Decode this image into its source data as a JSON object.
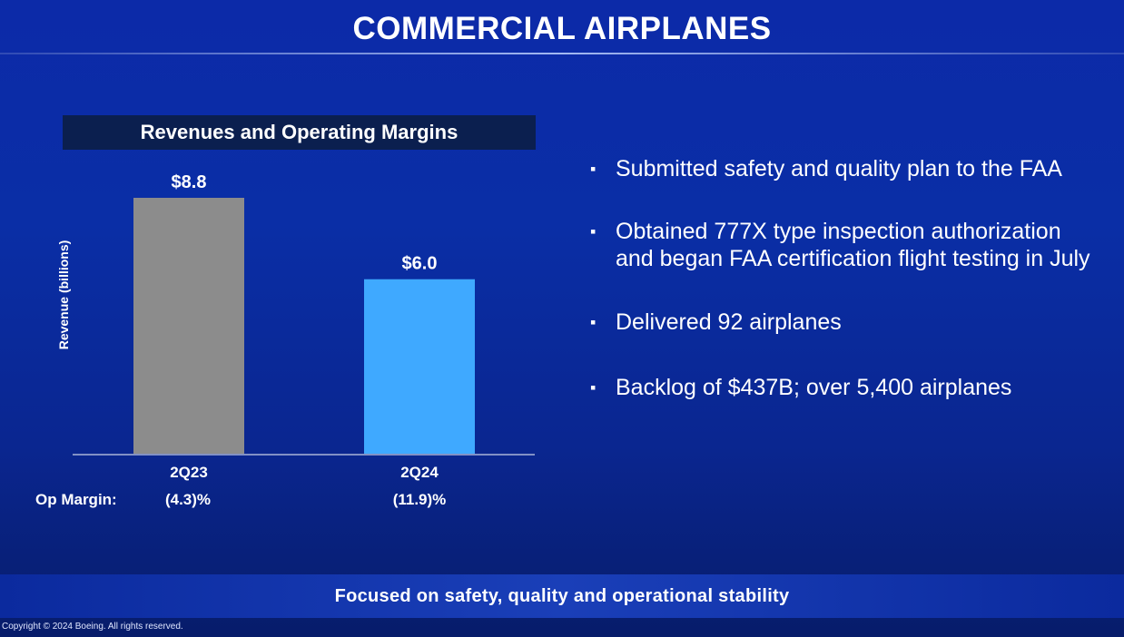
{
  "slide": {
    "title": "COMMERCIAL AIRPLANES",
    "footer": "Focused on safety, quality and operational stability",
    "copyright": "Copyright © 2024 Boeing. All rights reserved."
  },
  "colors": {
    "background": "#0a2ea6",
    "header_bar": "#0b1f4f",
    "bar_2q23": "#8c8c8c",
    "bar_2q24": "#3fa9ff"
  },
  "chart_data": {
    "type": "bar",
    "title": "Revenues and Operating Margins",
    "ylabel": "Revenue (billions)",
    "categories": [
      "2Q23",
      "2Q24"
    ],
    "values": [
      8.8,
      6.0
    ],
    "value_labels": [
      "$8.8",
      "$6.0"
    ],
    "ylim": [
      0,
      8.8
    ],
    "grid": false,
    "op_margin": {
      "label": "Op Margin:",
      "values": [
        "(4.3)%",
        "(11.9)%"
      ]
    }
  },
  "bullets": [
    {
      "marker": "▪",
      "text": "Submitted safety and quality plan to the FAA"
    },
    {
      "marker": "▪",
      "text": "Obtained 777X type inspection authorization\nand began FAA certification flight testing in July"
    },
    {
      "marker": "▪",
      "text": "Delivered 92 airplanes"
    },
    {
      "marker": "▪",
      "text": "Backlog of $437B; over 5,400 airplanes"
    }
  ]
}
